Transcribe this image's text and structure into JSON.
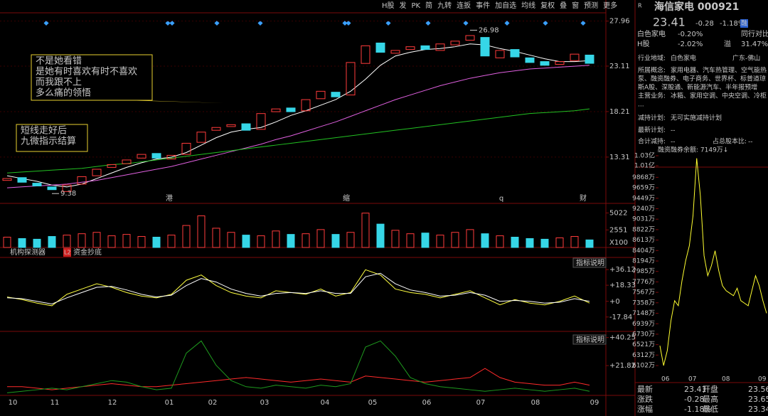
{
  "toolbar": [
    "H股",
    "发",
    "PK",
    "简",
    "九转",
    "连扳",
    "事件",
    "加自选",
    "均线",
    "复权",
    "叠",
    "窗",
    "预测",
    "更多"
  ],
  "main_chart": {
    "type": "candlestick",
    "ylim": [
      8.4,
      28.7
    ],
    "yticks": [
      27.96,
      23.11,
      18.21,
      13.31
    ],
    "months": [
      "10",
      "11",
      "12",
      "01",
      "02",
      "03",
      "04",
      "05",
      "06",
      "07",
      "08",
      "09"
    ],
    "open": [
      10.8,
      11.1,
      10.5,
      10.1,
      9.6,
      10.4,
      11.3,
      12.2,
      12.6,
      13.2,
      13.7,
      13.1,
      13.6,
      14.9,
      16.2,
      16.6,
      16.9,
      16.3,
      18.2,
      18.6,
      18.3,
      19.6,
      20.3,
      20.0,
      23.4,
      25.6,
      24.5,
      24.9,
      25.3,
      24.8,
      25.4,
      25.9,
      26.2,
      24.0,
      24.9,
      24.0,
      23.6,
      23.3,
      23.7,
      24.3
    ],
    "close": [
      11.0,
      10.6,
      10.2,
      9.8,
      10.3,
      11.2,
      12.0,
      12.5,
      13.0,
      13.6,
      13.2,
      13.5,
      14.8,
      16.0,
      16.5,
      16.8,
      16.2,
      18.0,
      18.5,
      18.2,
      19.5,
      20.4,
      19.8,
      23.5,
      25.3,
      24.6,
      24.8,
      25.2,
      24.9,
      25.5,
      25.8,
      26.4,
      24.2,
      24.8,
      24.1,
      23.5,
      23.2,
      23.6,
      24.4,
      23.41
    ],
    "up_color": "#ff3b3b",
    "down_color": "#36d6e7",
    "lines": [
      {
        "color": "#ffffff",
        "values": [
          11.3,
          11.0,
          10.7,
          10.3,
          10.1,
          10.4,
          11.0,
          11.6,
          12.2,
          12.7,
          13.1,
          13.3,
          13.8,
          14.6,
          15.4,
          16.0,
          16.3,
          16.5,
          17.1,
          17.8,
          18.3,
          18.9,
          19.5,
          20.4,
          21.7,
          23.2,
          24.2,
          24.6,
          24.9,
          25.0,
          25.2,
          25.5,
          25.4,
          25.0,
          24.7,
          24.3,
          23.9,
          23.6,
          23.6,
          23.7
        ]
      },
      {
        "color": "#e060e0",
        "values": [
          10.0,
          10.1,
          10.2,
          10.3,
          10.4,
          10.6,
          10.8,
          11.1,
          11.4,
          11.7,
          12.0,
          12.3,
          12.7,
          13.1,
          13.5,
          13.9,
          14.3,
          14.7,
          15.2,
          15.6,
          16.1,
          16.6,
          17.1,
          17.7,
          18.3,
          18.9,
          19.5,
          20.0,
          20.5,
          21.0,
          21.4,
          21.8,
          22.1,
          22.4,
          22.6,
          22.8,
          22.9,
          23.0,
          23.1,
          23.2
        ]
      },
      {
        "color": "#22c022",
        "values": [
          11.6,
          11.7,
          11.8,
          11.9,
          12.0,
          12.1,
          12.3,
          12.5,
          12.6,
          12.8,
          13.0,
          13.2,
          13.4,
          13.6,
          13.8,
          14.0,
          14.2,
          14.4,
          14.6,
          14.8,
          15.0,
          15.2,
          15.4,
          15.6,
          15.8,
          16.0,
          16.2,
          16.4,
          16.6,
          16.8,
          17.0,
          17.2,
          17.4,
          17.6,
          17.8,
          18.0,
          18.1,
          18.2,
          18.3,
          18.5
        ]
      }
    ],
    "high": 26.98,
    "low": 9.38,
    "events": [
      "港",
      "缩",
      "q",
      "财"
    ],
    "annotations": [
      [
        "不是她看错",
        "是她有时喜欢有时不喜欢",
        "而我跟不上",
        "多么痛的领悟"
      ],
      [
        "短线走好后",
        "九微指示结算"
      ]
    ]
  },
  "volume": {
    "type": "bar",
    "ylim": [
      0,
      6000
    ],
    "yticks": [
      5022,
      2551
    ],
    "unit_label": "X100",
    "values": [
      1500,
      1300,
      1200,
      1600,
      1800,
      2000,
      2200,
      1700,
      1900,
      1600,
      1500,
      1800,
      3200,
      4600,
      2800,
      2200,
      1800,
      1700,
      2400,
      1900,
      2000,
      2600,
      1900,
      2200,
      5000,
      3400,
      2500,
      2000,
      2100,
      1800,
      2200,
      2600,
      2000,
      1700,
      1500,
      1300,
      1200,
      1400,
      1600,
      1100
    ]
  },
  "tabs": [
    "机构探测器",
    "L2",
    "资金抄底"
  ],
  "indicator1": {
    "type": "line",
    "button": "指标说明",
    "ylim": [
      -33.4,
      50
    ],
    "yticks": [
      {
        "value": 36.12,
        "label": "+36.12"
      },
      {
        "value": 18.33,
        "label": "+18.33"
      },
      {
        "value": 0,
        "label": "+0"
      },
      -17.84
    ],
    "series": [
      {
        "color": "#ffff40",
        "values": [
          5,
          2,
          -2,
          -5,
          8,
          14,
          20,
          16,
          10,
          6,
          4,
          8,
          24,
          30,
          18,
          10,
          6,
          4,
          12,
          10,
          8,
          14,
          6,
          10,
          36,
          30,
          14,
          10,
          8,
          4,
          8,
          12,
          4,
          -4,
          2,
          -2,
          -4,
          0,
          6,
          -2
        ]
      },
      {
        "color": "#ffffff",
        "values": [
          4,
          3,
          0,
          -3,
          4,
          10,
          16,
          17,
          13,
          8,
          5,
          7,
          18,
          26,
          22,
          14,
          9,
          6,
          9,
          10,
          9,
          12,
          9,
          9,
          28,
          32,
          20,
          13,
          10,
          6,
          7,
          10,
          7,
          0,
          1,
          0,
          -2,
          -1,
          3,
          0
        ]
      }
    ]
  },
  "indicator2": {
    "type": "line",
    "button": "指标说明",
    "ylim": [
      2.3,
      42.4
    ],
    "yticks": [
      {
        "value": 40.25,
        "label": "+40.25"
      },
      {
        "value": 21.82,
        "label": "+21.82"
      }
    ],
    "series": [
      {
        "color": "#ff2a2a",
        "values": [
          8,
          8,
          7,
          6,
          7,
          8,
          9,
          10,
          9,
          8,
          8,
          9,
          10,
          11,
          12,
          13,
          14,
          13,
          12,
          11,
          12,
          13,
          12,
          11,
          15,
          14,
          13,
          12,
          11,
          12,
          13,
          14,
          20,
          14,
          11,
          10,
          9,
          9,
          11,
          9
        ]
      },
      {
        "color": "#1e9a1e",
        "values": [
          4,
          5,
          6,
          7,
          6,
          8,
          10,
          12,
          11,
          8,
          6,
          7,
          30,
          38,
          22,
          12,
          8,
          7,
          9,
          8,
          7,
          9,
          8,
          10,
          34,
          38,
          28,
          14,
          10,
          8,
          7,
          6,
          5,
          6,
          7,
          6,
          5,
          6,
          7,
          5
        ]
      }
    ]
  },
  "quote": {
    "badge": "R",
    "name": "海信家电 000921",
    "price": "23.41",
    "change": "-0.28",
    "pct": "-1.18%",
    "tag": "融",
    "sector": [
      "白色家电",
      "-0.20%",
      "同行对比"
    ],
    "hshare": [
      "H股",
      "-2.02%",
      "溢",
      "31.47%"
    ],
    "info": [
      [
        "行业地域:",
        "白色家电",
        "广东-佛山"
      ],
      [
        "所属概念:",
        "家用电器、汽车热管理、空气能热",
        "泵、融资融券、电子商务、世界杯、标普道琼",
        "斯A股、深股通、新能源汽车、半年报预增"
      ],
      [
        "主营业务:",
        "冰箱、家用空调、中央空调、冷柜",
        "..."
      ],
      [
        "减持计划:",
        "无可实施减持计划"
      ],
      [
        "最新计划:",
        "--"
      ],
      [
        "合计减持:",
        "--",
        "占总股本比:",
        "--"
      ]
    ]
  },
  "margin_chart": {
    "type": "line",
    "title": "融资融券余额: 7149万↓",
    "color": "#ffff30",
    "ylim": [
      5904,
      10357
    ],
    "yticks": [
      {
        "value": 10300,
        "label": "1.03亿"
      },
      {
        "value": 10100,
        "label": "1.01亿"
      },
      {
        "value": 9868,
        "label": "9868万"
      },
      {
        "value": 9659,
        "label": "9659万"
      },
      {
        "value": 9449,
        "label": "9449万"
      },
      {
        "value": 9240,
        "label": "9240万"
      },
      {
        "value": 9031,
        "label": "9031万"
      },
      {
        "value": 8822,
        "label": "8822万"
      },
      {
        "value": 8613,
        "label": "8613万"
      },
      {
        "value": 8404,
        "label": "8404万"
      },
      {
        "value": 8194,
        "label": "8194万"
      },
      {
        "value": 7985,
        "label": "7985万"
      },
      {
        "value": 7776,
        "label": "7776万"
      },
      {
        "value": 7567,
        "label": "7567万"
      },
      {
        "value": 7358,
        "label": "7358万"
      },
      {
        "value": 7148,
        "label": "7148万"
      },
      {
        "value": 6939,
        "label": "6939万"
      },
      {
        "value": 6730,
        "label": "6730万"
      },
      {
        "value": 6521,
        "label": "6521万"
      },
      {
        "value": 6312,
        "label": "6312万"
      },
      {
        "value": 6102,
        "label": "6102万"
      }
    ],
    "months": [
      "06",
      "07",
      "08",
      "09"
    ],
    "values": [
      6500,
      6102,
      6400,
      7000,
      7400,
      7300,
      7800,
      8200,
      8500,
      9100,
      10250,
      9500,
      8300,
      7900,
      8100,
      8400,
      8000,
      7700,
      7600,
      7550,
      7500,
      7650,
      7400,
      7350,
      7300,
      7600,
      7900,
      7700,
      7400,
      7149
    ]
  },
  "table": [
    [
      "最新",
      "23.41",
      "开盘",
      "23.56"
    ],
    [
      "涨跌",
      "-0.28",
      "最高",
      "23.65"
    ],
    [
      "涨幅",
      "-1.18%",
      "最低",
      "23.34"
    ]
  ]
}
